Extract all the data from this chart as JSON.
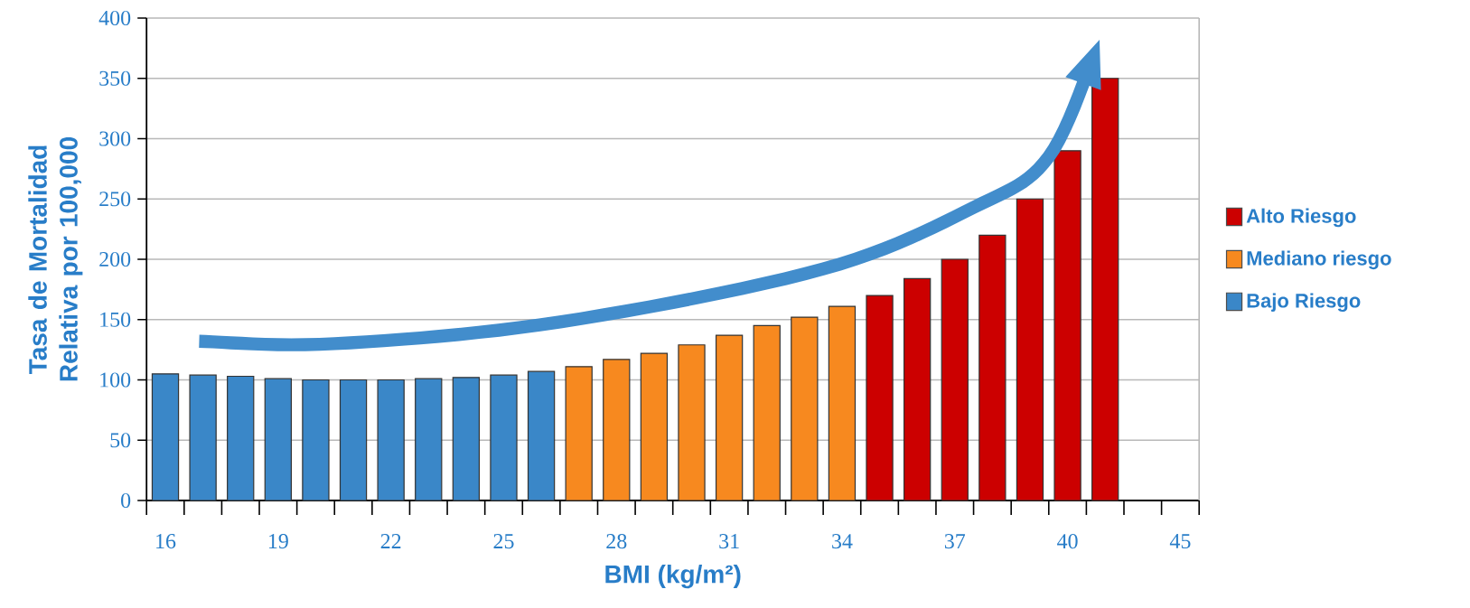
{
  "chart_data": {
    "type": "bar",
    "xlabel": "BMI (kg/m²)",
    "ylabel": "Tasa de Mortalidad Relativa por 100,000",
    "categories": [
      "16",
      null,
      null,
      "19",
      null,
      null,
      "22",
      null,
      null,
      "25",
      null,
      null,
      "28",
      null,
      null,
      "31",
      null,
      null,
      "34",
      null,
      null,
      "37",
      null,
      null,
      "40",
      null,
      null,
      "45"
    ],
    "series": [
      {
        "name": "Alto Riesgo",
        "color": "#cc0000",
        "values": [
          null,
          null,
          null,
          null,
          null,
          null,
          null,
          null,
          null,
          null,
          null,
          null,
          null,
          null,
          null,
          null,
          null,
          null,
          null,
          170,
          184,
          200,
          220,
          250,
          290,
          350,
          null,
          null
        ]
      },
      {
        "name": "Mediano riesgo",
        "color": "#f7891f",
        "values": [
          null,
          null,
          null,
          null,
          null,
          null,
          null,
          null,
          null,
          null,
          null,
          111,
          117,
          122,
          129,
          137,
          145,
          152,
          161,
          null,
          null,
          null,
          null,
          null,
          null,
          null,
          null,
          null
        ]
      },
      {
        "name": "Bajo Riesgo",
        "color": "#3a87c8",
        "values": [
          105,
          104,
          103,
          101,
          100,
          100,
          100,
          101,
          102,
          104,
          107,
          null,
          null,
          null,
          null,
          null,
          null,
          null,
          null,
          null,
          null,
          null,
          null,
          null,
          null,
          null,
          null,
          null
        ]
      }
    ],
    "ylim": [
      0,
      400
    ],
    "yticks": [
      0,
      50,
      100,
      150,
      200,
      250,
      300,
      350,
      400
    ],
    "grid": "y",
    "legend": "right"
  }
}
